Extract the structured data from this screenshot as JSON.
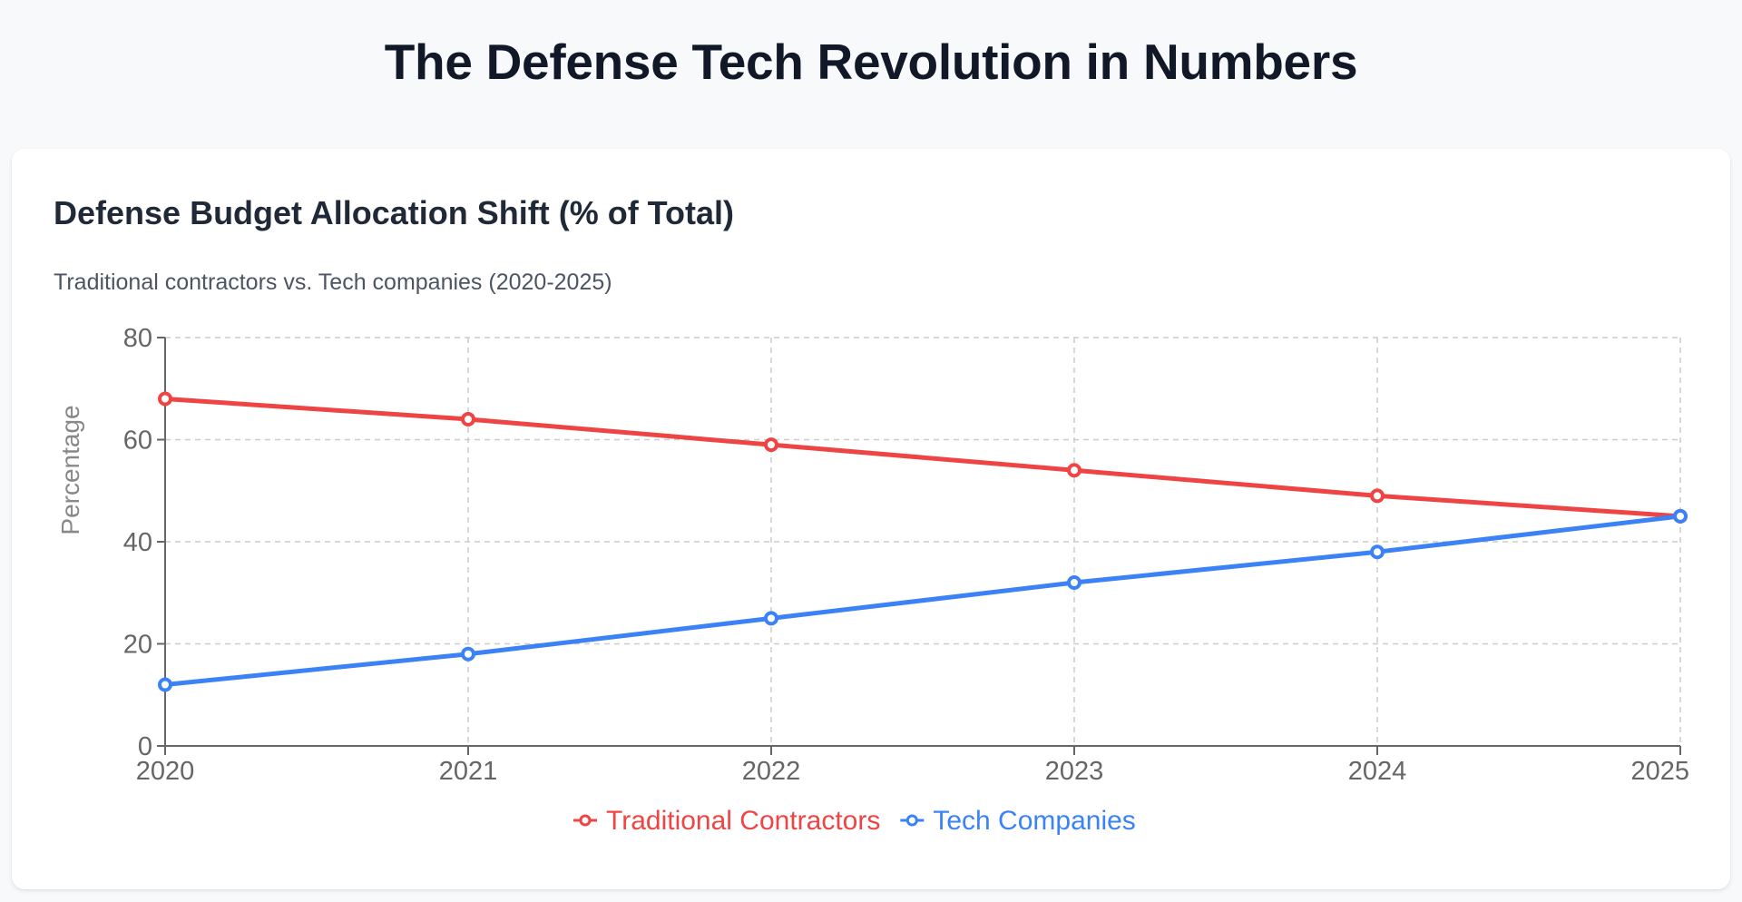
{
  "page": {
    "title": "The Defense Tech Revolution in Numbers"
  },
  "card": {
    "title": "Defense Budget Allocation Shift (% of Total)",
    "subtitle": "Traditional contractors vs. Tech companies (2020-2025)"
  },
  "chart_data": {
    "type": "line",
    "title": "Defense Budget Allocation Shift (% of Total)",
    "subtitle": "Traditional contractors vs. Tech companies (2020-2025)",
    "xlabel": "",
    "ylabel": "Percentage",
    "x": [
      "2020",
      "2021",
      "2022",
      "2023",
      "2024",
      "2025"
    ],
    "ylim": [
      0,
      80
    ],
    "yticks": [
      0,
      20,
      40,
      60,
      80
    ],
    "grid": true,
    "legend_position": "bottom-center",
    "series": [
      {
        "name": "Traditional Contractors",
        "color": "#ef4444",
        "values": [
          68,
          64,
          59,
          54,
          49,
          45
        ]
      },
      {
        "name": "Tech Companies",
        "color": "#3b82f6",
        "values": [
          12,
          18,
          25,
          32,
          38,
          45
        ]
      }
    ]
  }
}
